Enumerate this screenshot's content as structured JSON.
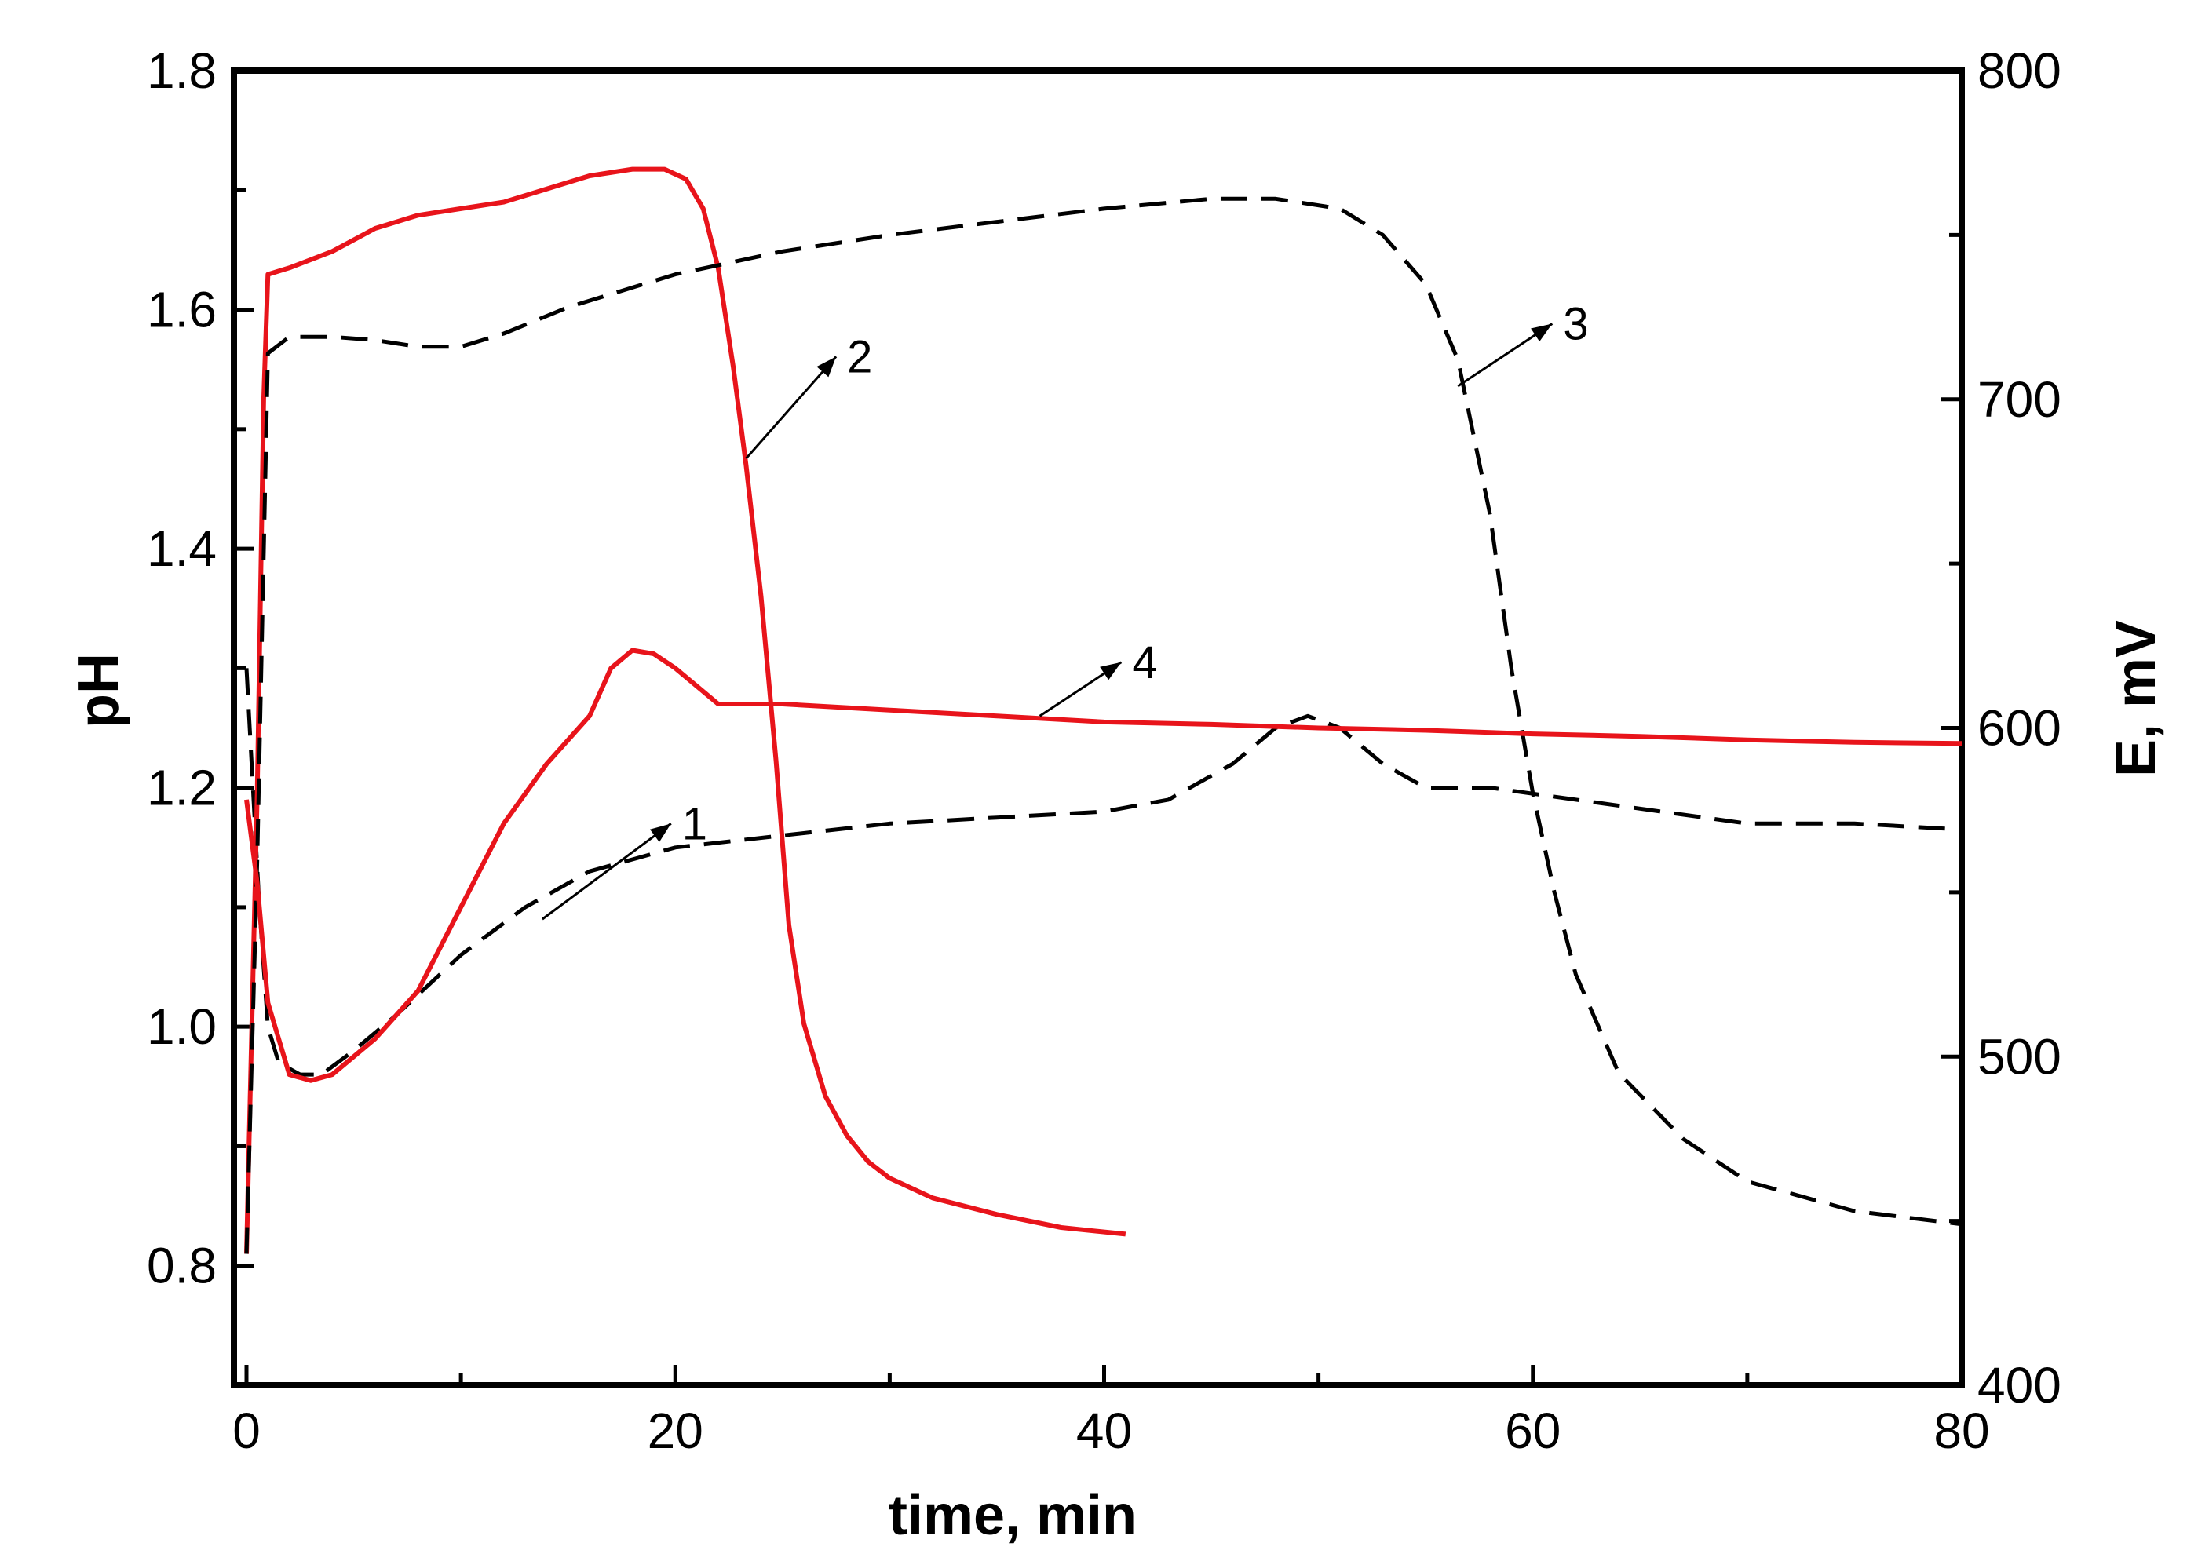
{
  "chart_data": {
    "type": "line",
    "title": "",
    "xlabel": "time, min",
    "ylabel_left": "pH",
    "ylabel_right": "E, mV",
    "xlim": [
      0,
      80
    ],
    "ylim_left": [
      0.7,
      1.8
    ],
    "ylim_right": [
      400,
      800
    ],
    "x_ticks": [
      0,
      20,
      40,
      60,
      80
    ],
    "y_left_ticks": [
      0.8,
      1.0,
      1.2,
      1.4,
      1.6,
      1.8
    ],
    "y_right_ticks": [
      400,
      500,
      600,
      700,
      800
    ],
    "x_tick_labels": [
      "0",
      "20",
      "40",
      "60",
      "80"
    ],
    "y_left_tick_labels": [
      "0.8",
      "1.0",
      "1.2",
      "1.4",
      "1.6",
      "1.8"
    ],
    "y_right_tick_labels": [
      "400",
      "500",
      "600",
      "700",
      "800"
    ],
    "colors": {
      "red": "#e8141b",
      "black": "#000000"
    },
    "series": [
      {
        "name": "1",
        "axis": "left",
        "color": "#000000",
        "dash": true,
        "x": [
          0,
          0.3,
          0.6,
          1,
          1.5,
          2.5,
          3.5,
          5,
          7,
          10,
          13,
          16,
          20,
          25,
          30,
          35,
          40,
          43,
          46,
          48,
          49.5,
          51,
          53,
          55,
          58,
          62,
          66,
          70,
          75,
          80
        ],
        "y": [
          1.3,
          1.2,
          1.1,
          1.0,
          0.97,
          0.96,
          0.96,
          0.98,
          1.01,
          1.06,
          1.1,
          1.13,
          1.15,
          1.16,
          1.17,
          1.175,
          1.18,
          1.19,
          1.22,
          1.25,
          1.26,
          1.25,
          1.22,
          1.2,
          1.2,
          1.19,
          1.18,
          1.17,
          1.17,
          1.165
        ]
      },
      {
        "name": "2",
        "axis": "right",
        "color": "#e8141b",
        "dash": false,
        "x": [
          0,
          0.5,
          0.8,
          1,
          2,
          4,
          6,
          8,
          10,
          12,
          14,
          16,
          18,
          19.5,
          20.5,
          21.3,
          22,
          22.7,
          23.3,
          24,
          24.7,
          25.3,
          26,
          27,
          28,
          29,
          30,
          32,
          35,
          38,
          41
        ],
        "y": [
          440,
          580,
          700,
          738,
          740,
          745,
          752,
          756,
          758,
          760,
          764,
          768,
          770,
          770,
          767,
          758,
          740,
          710,
          680,
          640,
          590,
          540,
          510,
          488,
          476,
          468,
          463,
          457,
          452,
          448,
          446
        ]
      },
      {
        "name": "3",
        "axis": "right",
        "color": "#000000",
        "dash": true,
        "x": [
          0,
          0.5,
          1,
          2,
          4,
          6,
          8,
          10,
          12,
          15,
          20,
          25,
          30,
          35,
          40,
          45,
          48,
          51,
          53,
          55,
          56.5,
          58,
          59,
          60,
          61,
          62,
          64,
          67,
          70,
          75,
          80
        ],
        "y": [
          440,
          560,
          714,
          719,
          719,
          718,
          716,
          716,
          720,
          728,
          738,
          745,
          750,
          754,
          758,
          761,
          761,
          758,
          750,
          735,
          712,
          665,
          618,
          580,
          550,
          525,
          495,
          475,
          462,
          453,
          449
        ]
      },
      {
        "name": "4",
        "axis": "left",
        "color": "#e8141b",
        "dash": false,
        "x": [
          0,
          0.5,
          1,
          2,
          3,
          4,
          6,
          8,
          10,
          12,
          14,
          16,
          17,
          18,
          19,
          20,
          21,
          22,
          25,
          30,
          35,
          40,
          45,
          50,
          55,
          60,
          65,
          70,
          75,
          80
        ],
        "y": [
          1.19,
          1.12,
          1.02,
          0.96,
          0.955,
          0.96,
          0.99,
          1.03,
          1.1,
          1.17,
          1.22,
          1.26,
          1.3,
          1.315,
          1.312,
          1.3,
          1.285,
          1.27,
          1.27,
          1.265,
          1.26,
          1.255,
          1.253,
          1.25,
          1.248,
          1.245,
          1.243,
          1.24,
          1.238,
          1.237
        ]
      }
    ],
    "annotations": [
      {
        "label": "1",
        "axis": "left",
        "arrow_from": [
          13.8,
          1.09
        ],
        "arrow_to": [
          19.8,
          1.17
        ]
      },
      {
        "label": "2",
        "axis": "right",
        "arrow_from": [
          23.3,
          682
        ],
        "arrow_to": [
          27.5,
          713
        ]
      },
      {
        "label": "3",
        "axis": "right",
        "arrow_from": [
          56.5,
          704
        ],
        "arrow_to": [
          60.9,
          723
        ]
      },
      {
        "label": "4",
        "axis": "left",
        "arrow_from": [
          37,
          1.26
        ],
        "arrow_to": [
          40.8,
          1.305
        ]
      }
    ]
  }
}
